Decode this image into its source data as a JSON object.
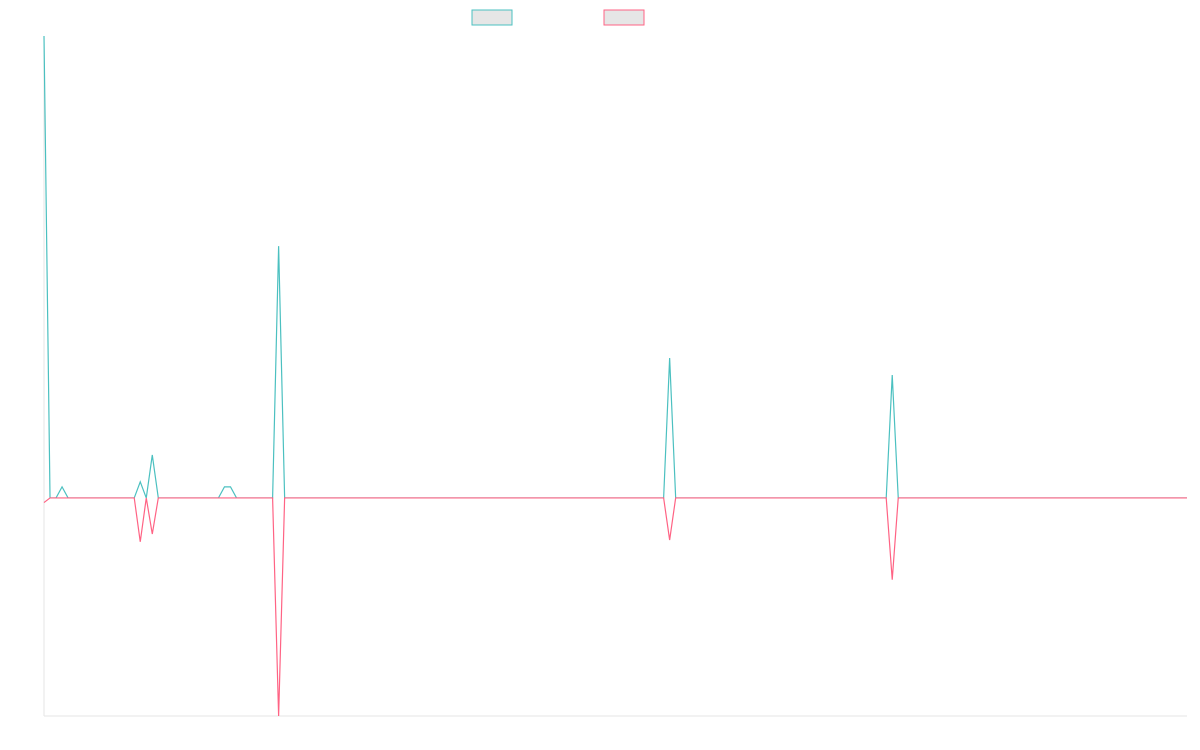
{
  "chart_data": {
    "type": "line",
    "x": [
      0,
      1,
      2,
      3,
      4,
      15,
      16,
      17,
      18,
      19,
      20,
      29,
      30,
      31,
      32,
      38,
      39,
      40,
      52,
      53,
      54,
      60,
      61,
      62,
      103,
      104,
      105,
      140,
      141,
      142,
      190
    ],
    "series": [
      {
        "color": "#4bc0c0",
        "values": [
          100,
          0,
          0,
          2.4,
          0,
          0,
          3.5,
          0,
          9.3,
          0,
          0,
          0,
          2.4,
          2.4,
          0,
          0,
          54.5,
          0,
          0,
          0,
          0,
          0,
          0,
          0,
          0,
          30.3,
          0,
          0,
          26.6,
          0,
          0
        ]
      },
      {
        "color": "#ff6384",
        "values": [
          -1,
          0,
          0,
          0,
          0,
          0,
          -9.5,
          0,
          -7.8,
          0,
          0,
          0,
          0,
          0,
          0,
          0,
          -47.2,
          0,
          0,
          0,
          0,
          0,
          0,
          0,
          0,
          -9.1,
          0,
          0,
          -17.7,
          0,
          0
        ]
      }
    ],
    "xlim": [
      0,
      190
    ],
    "ylim": [
      -47.2,
      100
    ]
  }
}
